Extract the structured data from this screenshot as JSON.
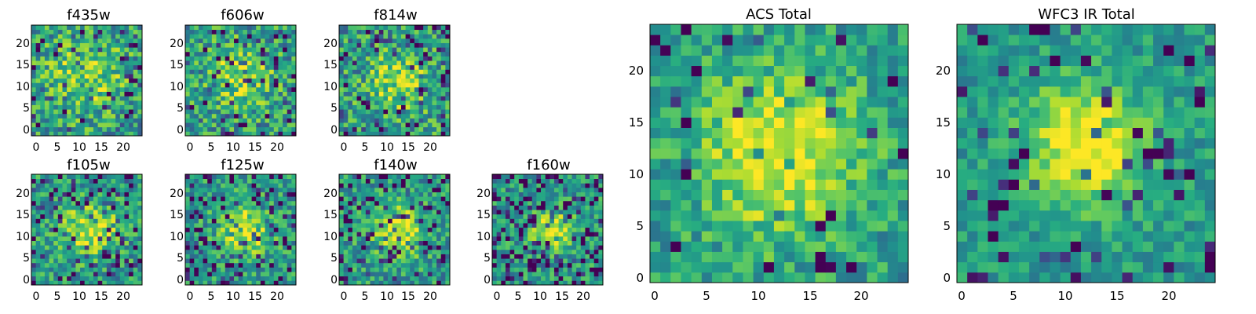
{
  "figure": {
    "panels": [
      {
        "id": "p-f435w",
        "title": "f435w",
        "seed": 11,
        "xticks": [
          "0",
          "5",
          "10",
          "15",
          "20"
        ],
        "yticks": [
          "0",
          "5",
          "10",
          "15",
          "20"
        ]
      },
      {
        "id": "p-f606w",
        "title": "f606w",
        "seed": 23,
        "xticks": [
          "0",
          "5",
          "10",
          "15",
          "20"
        ],
        "yticks": [
          "0",
          "5",
          "10",
          "15",
          "20"
        ]
      },
      {
        "id": "p-f814w",
        "title": "f814w",
        "seed": 37,
        "xticks": [
          "0",
          "5",
          "10",
          "15",
          "20"
        ],
        "yticks": [
          "0",
          "5",
          "10",
          "15",
          "20"
        ]
      },
      {
        "id": "p-f105w",
        "title": "f105w",
        "seed": 41,
        "xticks": [
          "0",
          "5",
          "10",
          "15",
          "20"
        ],
        "yticks": [
          "0",
          "5",
          "10",
          "15",
          "20"
        ]
      },
      {
        "id": "p-f125w",
        "title": "f125w",
        "seed": 53,
        "xticks": [
          "0",
          "5",
          "10",
          "15",
          "20"
        ],
        "yticks": [
          "0",
          "5",
          "10",
          "15",
          "20"
        ]
      },
      {
        "id": "p-f140w",
        "title": "f140w",
        "seed": 67,
        "xticks": [
          "0",
          "5",
          "10",
          "15",
          "20"
        ],
        "yticks": [
          "0",
          "5",
          "10",
          "15",
          "20"
        ]
      },
      {
        "id": "p-f160w",
        "title": "f160w",
        "seed": 79,
        "xticks": [
          "0",
          "5",
          "10",
          "15",
          "20"
        ],
        "yticks": [
          "0",
          "5",
          "10",
          "15",
          "20"
        ]
      },
      {
        "id": "p-acs",
        "title": "ACS Total",
        "seed": 83,
        "xticks": [
          "0",
          "5",
          "10",
          "15",
          "20"
        ],
        "yticks": [
          "0",
          "5",
          "10",
          "15",
          "20"
        ]
      },
      {
        "id": "p-wfc3",
        "title": "WFC3 IR Total",
        "seed": 97,
        "xticks": [
          "0",
          "5",
          "10",
          "15",
          "20"
        ],
        "yticks": [
          "0",
          "5",
          "10",
          "15",
          "20"
        ]
      }
    ]
  },
  "chart_data": {
    "type": "heatmap",
    "colormap": "viridis",
    "grid_size": [
      25,
      25
    ],
    "xlim": [
      0,
      24
    ],
    "ylim": [
      0,
      24
    ],
    "grid": false,
    "panels": [
      "f435w",
      "f606w",
      "f814w",
      "f105w",
      "f125w",
      "f140w",
      "f160w",
      "ACS Total",
      "WFC3 IR Total"
    ]
  }
}
